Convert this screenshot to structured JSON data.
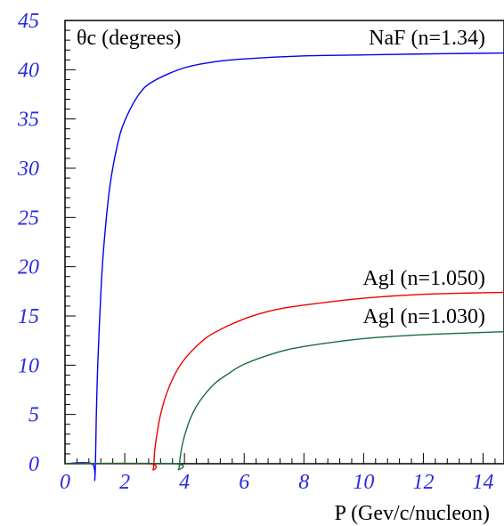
{
  "chart_data": {
    "type": "line",
    "ylabel": "θc (degrees)",
    "xlabel": "P (Gev/c/nucleon)",
    "xlim": [
      0,
      14.7
    ],
    "ylim": [
      0,
      45
    ],
    "x_ticks": [
      0,
      2,
      4,
      6,
      8,
      10,
      12,
      14
    ],
    "x_tick_labels": [
      "0",
      "2",
      "4",
      "6",
      "8",
      "10",
      "12",
      "14"
    ],
    "y_ticks": [
      0,
      5,
      10,
      15,
      20,
      25,
      30,
      35,
      40,
      45
    ],
    "y_tick_labels": [
      "0",
      "5",
      "10",
      "15",
      "20",
      "25",
      "30",
      "35",
      "40",
      "45"
    ],
    "grid": false,
    "series": [
      {
        "name": "NaF (n=1.34)",
        "color": "#0000ee",
        "x": [
          0,
          0.9,
          1.0,
          1.05,
          1.1,
          1.2,
          1.3,
          1.5,
          1.75,
          2.0,
          2.5,
          3.0,
          4.0,
          5.0,
          6.0,
          8.0,
          10.0,
          12.0,
          14.7
        ],
        "y": [
          0,
          0,
          -1.5,
          5.0,
          10.3,
          17.3,
          22.1,
          28.1,
          32.3,
          34.8,
          37.6,
          38.9,
          40.2,
          40.8,
          41.1,
          41.4,
          41.5,
          41.6,
          41.7
        ]
      },
      {
        "name": "Agl (n=1.050)",
        "color": "#ee0000",
        "x": [
          0,
          2.8,
          2.95,
          3.0,
          3.05,
          3.1,
          3.2,
          3.4,
          3.7,
          4.0,
          4.5,
          5.0,
          6.0,
          7.0,
          8.0,
          10.0,
          12.0,
          14.7
        ],
        "y": [
          0,
          0,
          -0.6,
          1.2,
          2.4,
          3.4,
          5.0,
          7.1,
          9.2,
          10.6,
          12.2,
          13.3,
          14.7,
          15.6,
          16.1,
          16.8,
          17.2,
          17.4
        ]
      },
      {
        "name": "Agl (n=1.030)",
        "color": "#1a6b3a",
        "x": [
          0,
          3.65,
          3.8,
          3.85,
          3.9,
          4.0,
          4.2,
          4.5,
          5.0,
          5.5,
          6.0,
          7.0,
          8.0,
          10.0,
          12.0,
          14.7
        ],
        "y": [
          0,
          0,
          -0.6,
          0.5,
          1.5,
          2.8,
          4.6,
          6.3,
          8.1,
          9.2,
          10.1,
          11.2,
          11.9,
          12.7,
          13.1,
          13.4
        ]
      }
    ]
  }
}
